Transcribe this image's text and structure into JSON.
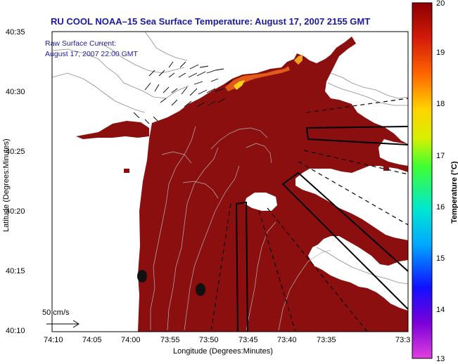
{
  "title": "RU COOL  NOAA–15  Sea Surface Temperature:  August 17, 2007 2155 GMT",
  "annotation": {
    "line1": "Raw Surface Current:",
    "line2": "August 17, 2007 22:00 GMT"
  },
  "scale_arrow_label": "50 cm/s",
  "axes": {
    "xlabel": "Longitude (Degrees:Minutes)",
    "ylabel": "Latitude (Degrees:Minutes)",
    "x_ticks": [
      "74:10",
      "74:05",
      "74:00",
      "73:55",
      "73:50",
      "73:45",
      "73:40",
      "73:35",
      "73:3"
    ],
    "y_ticks": [
      "40:35",
      "40:30",
      "40:25",
      "40:20",
      "40:15",
      "40:10"
    ]
  },
  "colorbar": {
    "label": "Temperature (°C)",
    "ticks": [
      "20",
      "19",
      "18",
      "17",
      "16",
      "15",
      "14",
      "13"
    ],
    "min": 13,
    "max": 20
  },
  "colors": {
    "sst_warm": "#8b0f0f",
    "land": "#ffffff",
    "title_blue": "#1a1aa0"
  }
}
